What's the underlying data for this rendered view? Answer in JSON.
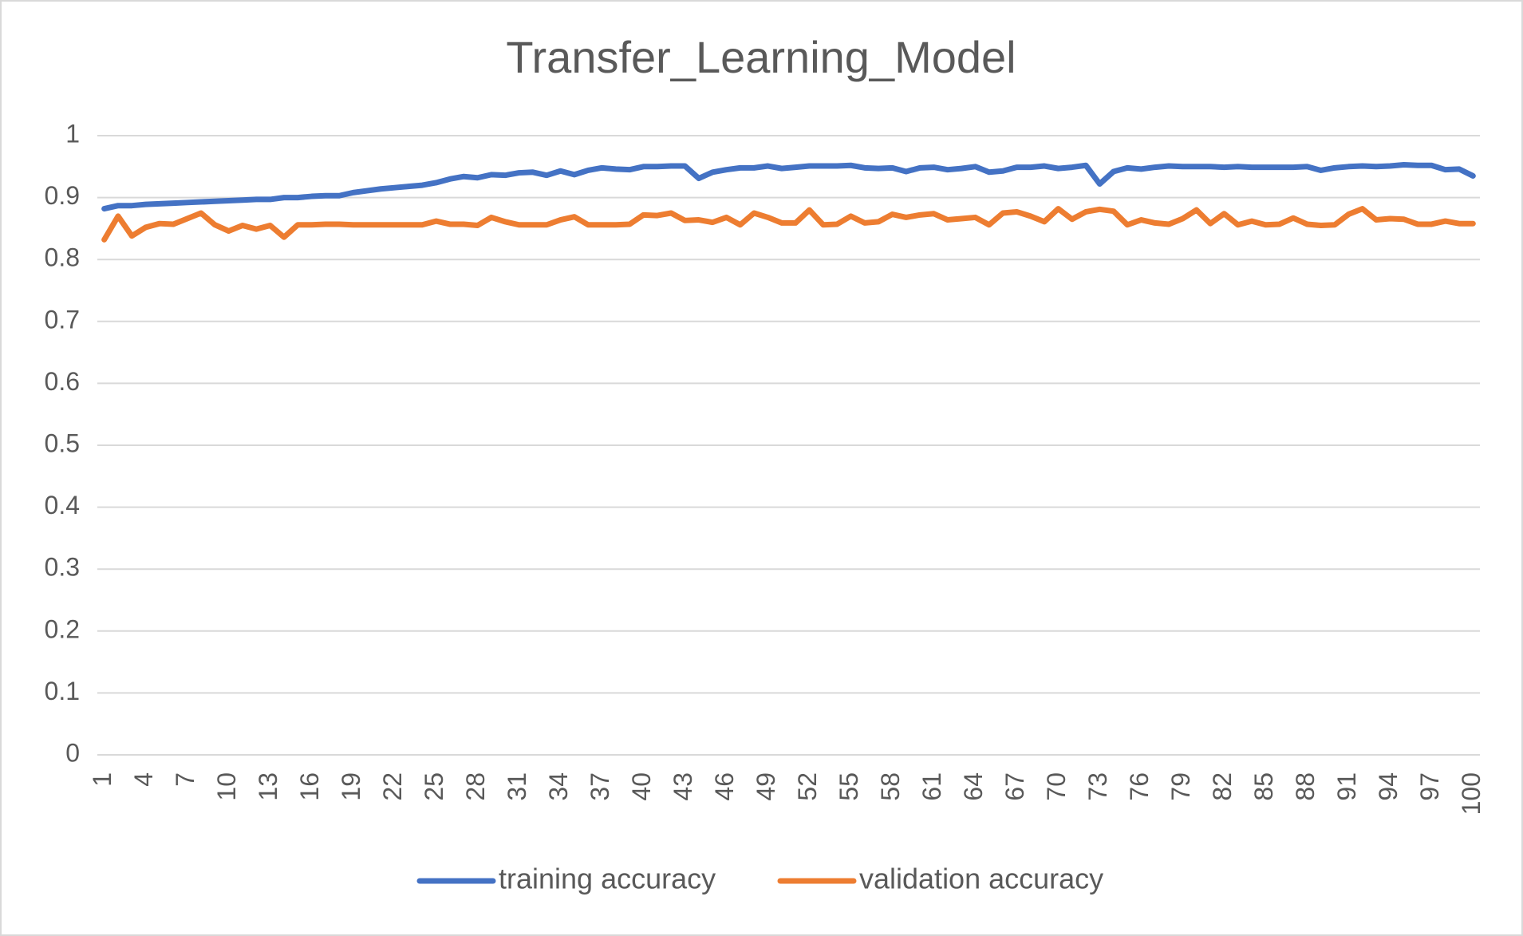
{
  "chart_data": {
    "type": "line",
    "title": "Transfer_Learning_Model",
    "categories": [
      1,
      null,
      null,
      4,
      null,
      null,
      7,
      null,
      null,
      10,
      null,
      null,
      13,
      null,
      null,
      16,
      null,
      null,
      19,
      null,
      null,
      22,
      null,
      null,
      25,
      null,
      null,
      28,
      null,
      null,
      31,
      null,
      null,
      34,
      null,
      null,
      37,
      null,
      null,
      40,
      null,
      null,
      43,
      null,
      null,
      46,
      null,
      null,
      49,
      null,
      null,
      52,
      null,
      null,
      55,
      null,
      null,
      58,
      null,
      null,
      61,
      null,
      null,
      64,
      null,
      null,
      67,
      null,
      null,
      70,
      null,
      null,
      73,
      null,
      null,
      76,
      null,
      null,
      79,
      null,
      null,
      82,
      null,
      null,
      85,
      null,
      null,
      88,
      null,
      null,
      91,
      null,
      null,
      94,
      null,
      null,
      97,
      null,
      null,
      100
    ],
    "series": [
      {
        "name": "training accuracy",
        "color": "#4472c4",
        "values": [
          0.882,
          0.887,
          0.887,
          0.889,
          0.89,
          0.891,
          0.892,
          0.893,
          0.894,
          0.895,
          0.896,
          0.897,
          0.897,
          0.9,
          0.9,
          0.902,
          0.903,
          0.903,
          0.908,
          0.911,
          0.914,
          0.916,
          0.918,
          0.92,
          0.924,
          0.93,
          0.934,
          0.932,
          0.937,
          0.936,
          0.94,
          0.941,
          0.936,
          0.943,
          0.937,
          0.944,
          0.948,
          0.946,
          0.945,
          0.95,
          0.95,
          0.951,
          0.951,
          0.931,
          0.941,
          0.945,
          0.948,
          0.948,
          0.951,
          0.947,
          0.949,
          0.951,
          0.951,
          0.951,
          0.952,
          0.948,
          0.947,
          0.948,
          0.942,
          0.948,
          0.949,
          0.945,
          0.947,
          0.95,
          0.941,
          0.943,
          0.949,
          0.949,
          0.951,
          0.947,
          0.949,
          0.952,
          0.922,
          0.942,
          0.948,
          0.946,
          0.949,
          0.951,
          0.95,
          0.95,
          0.95,
          0.949,
          0.95,
          0.949,
          0.949,
          0.949,
          0.949,
          0.95,
          0.944,
          0.948,
          0.95,
          0.951,
          0.95,
          0.951,
          0.953,
          0.952,
          0.952,
          0.945,
          0.946,
          0.935
        ]
      },
      {
        "name": "validation accuracy",
        "color": "#ed7d31",
        "values": [
          0.832,
          0.87,
          0.838,
          0.852,
          0.858,
          0.857,
          0.866,
          0.875,
          0.856,
          0.846,
          0.855,
          0.849,
          0.855,
          0.836,
          0.856,
          0.856,
          0.857,
          0.857,
          0.856,
          0.856,
          0.856,
          0.856,
          0.856,
          0.856,
          0.862,
          0.857,
          0.857,
          0.855,
          0.868,
          0.861,
          0.856,
          0.856,
          0.856,
          0.864,
          0.869,
          0.856,
          0.856,
          0.856,
          0.857,
          0.872,
          0.871,
          0.875,
          0.863,
          0.864,
          0.86,
          0.868,
          0.856,
          0.875,
          0.868,
          0.859,
          0.859,
          0.88,
          0.856,
          0.857,
          0.87,
          0.859,
          0.861,
          0.873,
          0.868,
          0.872,
          0.874,
          0.864,
          0.866,
          0.868,
          0.856,
          0.875,
          0.877,
          0.87,
          0.861,
          0.882,
          0.865,
          0.877,
          0.881,
          0.878,
          0.856,
          0.864,
          0.859,
          0.857,
          0.866,
          0.88,
          0.858,
          0.874,
          0.856,
          0.862,
          0.856,
          0.857,
          0.867,
          0.857,
          0.855,
          0.856,
          0.873,
          0.882,
          0.864,
          0.866,
          0.865,
          0.857,
          0.857,
          0.862,
          0.858,
          0.858
        ]
      }
    ],
    "ylim": [
      0,
      1
    ],
    "yticks": [
      0,
      0.1,
      0.2,
      0.3,
      0.4,
      0.5,
      0.6,
      0.7,
      0.8,
      0.9,
      1
    ],
    "grid": true,
    "legend": "bottom"
  }
}
